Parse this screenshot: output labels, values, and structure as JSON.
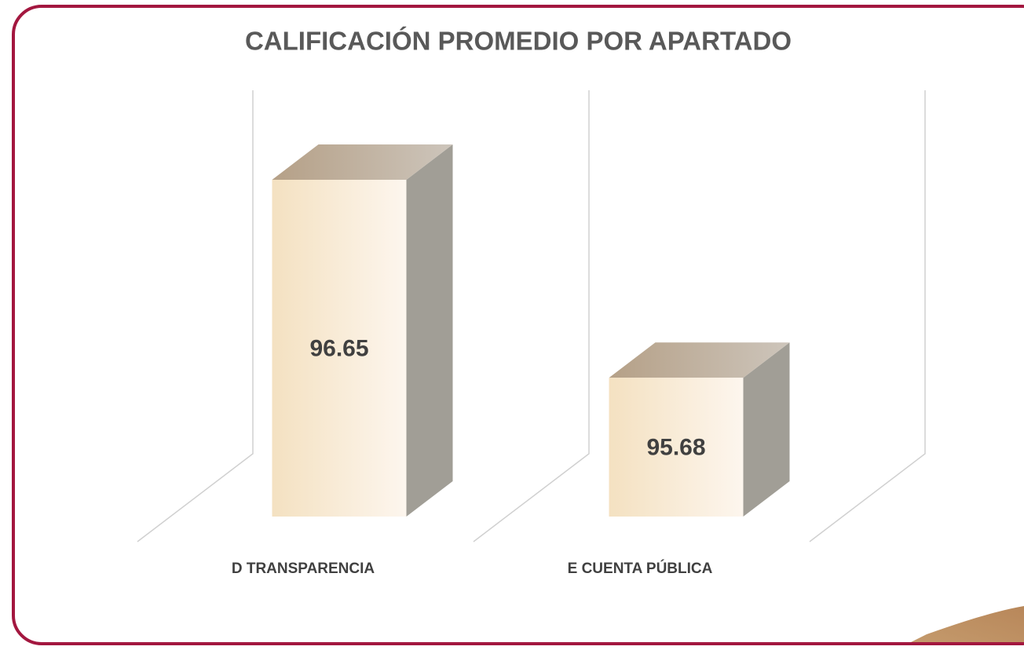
{
  "chart_data": {
    "type": "bar3d",
    "title": "CALIFICACIÓN PROMEDIO POR APARTADO",
    "categories": [
      "D TRANSPARENCIA",
      "E CUENTA PÚBLICA"
    ],
    "values": [
      96.65,
      95.68
    ],
    "color": "#f5e3c5",
    "ylim": [
      95,
      97
    ]
  }
}
